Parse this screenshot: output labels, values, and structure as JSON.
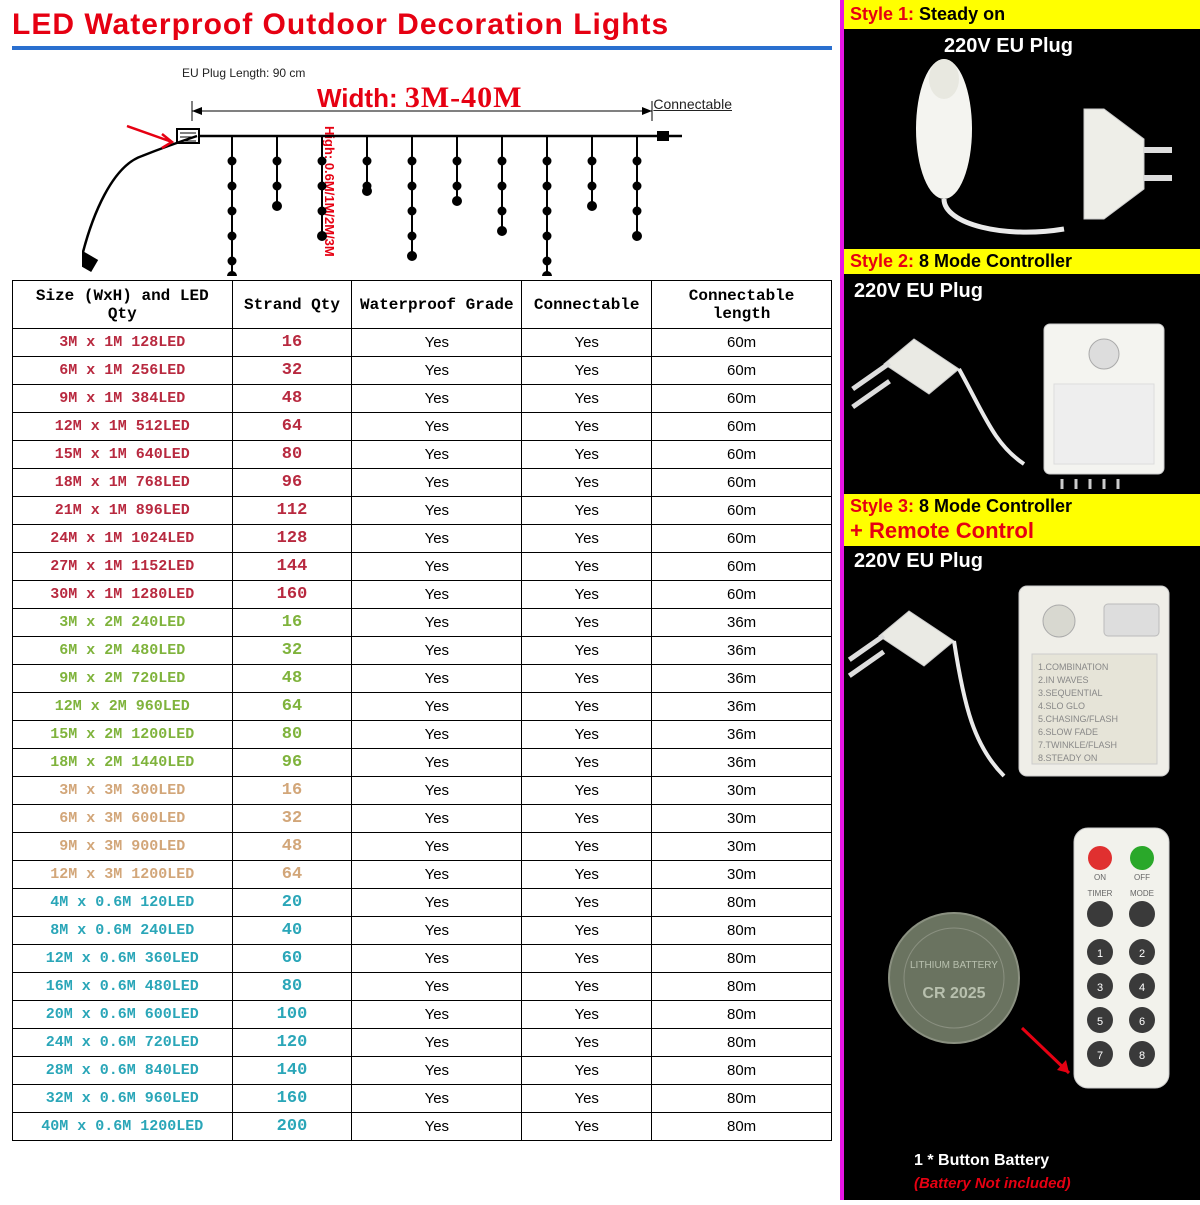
{
  "title": "LED Waterproof Outdoor Decoration Lights",
  "diagram": {
    "width_label": "Width:",
    "width_range": "3M-40M",
    "plug_label": "EU Plug Length: 90 cm",
    "connectable_label": "Connectable",
    "high_label": "High: 0.6M/1M/2M/3M"
  },
  "table": {
    "columns": [
      "Size (WxH) and LED Qty",
      "Strand Qty",
      "Waterproof Grade",
      "Connectable",
      "Connectable length"
    ],
    "row_groups": [
      {
        "color": "#b8293f",
        "rows": [
          {
            "size": "3M x 1M 128LED",
            "strand": "16",
            "wp": "Yes",
            "conn": "Yes",
            "len": "60m"
          },
          {
            "size": "6M x 1M 256LED",
            "strand": "32",
            "wp": "Yes",
            "conn": "Yes",
            "len": "60m"
          },
          {
            "size": "9M x 1M 384LED",
            "strand": "48",
            "wp": "Yes",
            "conn": "Yes",
            "len": "60m"
          },
          {
            "size": "12M x 1M 512LED",
            "strand": "64",
            "wp": "Yes",
            "conn": "Yes",
            "len": "60m"
          },
          {
            "size": "15M x 1M 640LED",
            "strand": "80",
            "wp": "Yes",
            "conn": "Yes",
            "len": "60m"
          },
          {
            "size": "18M x 1M 768LED",
            "strand": "96",
            "wp": "Yes",
            "conn": "Yes",
            "len": "60m"
          },
          {
            "size": "21M x 1M 896LED",
            "strand": "112",
            "wp": "Yes",
            "conn": "Yes",
            "len": "60m"
          },
          {
            "size": "24M x 1M 1024LED",
            "strand": "128",
            "wp": "Yes",
            "conn": "Yes",
            "len": "60m"
          },
          {
            "size": "27M x 1M 1152LED",
            "strand": "144",
            "wp": "Yes",
            "conn": "Yes",
            "len": "60m"
          },
          {
            "size": "30M x 1M 1280LED",
            "strand": "160",
            "wp": "Yes",
            "conn": "Yes",
            "len": "60m"
          }
        ]
      },
      {
        "color": "#7fb33c",
        "rows": [
          {
            "size": "3M x 2M 240LED",
            "strand": "16",
            "wp": "Yes",
            "conn": "Yes",
            "len": "36m"
          },
          {
            "size": "6M x 2M 480LED",
            "strand": "32",
            "wp": "Yes",
            "conn": "Yes",
            "len": "36m"
          },
          {
            "size": "9M x 2M 720LED",
            "strand": "48",
            "wp": "Yes",
            "conn": "Yes",
            "len": "36m"
          },
          {
            "size": "12M x 2M 960LED",
            "strand": "64",
            "wp": "Yes",
            "conn": "Yes",
            "len": "36m"
          },
          {
            "size": "15M x 2M 1200LED",
            "strand": "80",
            "wp": "Yes",
            "conn": "Yes",
            "len": "36m"
          },
          {
            "size": "18M x 2M 1440LED",
            "strand": "96",
            "wp": "Yes",
            "conn": "Yes",
            "len": "36m"
          }
        ]
      },
      {
        "color": "#d2a679",
        "rows": [
          {
            "size": "3M x 3M 300LED",
            "strand": "16",
            "wp": "Yes",
            "conn": "Yes",
            "len": "30m"
          },
          {
            "size": "6M x 3M 600LED",
            "strand": "32",
            "wp": "Yes",
            "conn": "Yes",
            "len": "30m"
          },
          {
            "size": "9M x 3M 900LED",
            "strand": "48",
            "wp": "Yes",
            "conn": "Yes",
            "len": "30m"
          },
          {
            "size": "12M x 3M 1200LED",
            "strand": "64",
            "wp": "Yes",
            "conn": "Yes",
            "len": "30m"
          }
        ]
      },
      {
        "color": "#2aa6b8",
        "rows": [
          {
            "size": "4M x 0.6M 120LED",
            "strand": "20",
            "wp": "Yes",
            "conn": "Yes",
            "len": "80m"
          },
          {
            "size": "8M x 0.6M 240LED",
            "strand": "40",
            "wp": "Yes",
            "conn": "Yes",
            "len": "80m"
          },
          {
            "size": "12M x 0.6M 360LED",
            "strand": "60",
            "wp": "Yes",
            "conn": "Yes",
            "len": "80m"
          },
          {
            "size": "16M x 0.6M 480LED",
            "strand": "80",
            "wp": "Yes",
            "conn": "Yes",
            "len": "80m"
          },
          {
            "size": "20M x 0.6M 600LED",
            "strand": "100",
            "wp": "Yes",
            "conn": "Yes",
            "len": "80m"
          },
          {
            "size": "24M x 0.6M 720LED",
            "strand": "120",
            "wp": "Yes",
            "conn": "Yes",
            "len": "80m"
          },
          {
            "size": "28M x 0.6M 840LED",
            "strand": "140",
            "wp": "Yes",
            "conn": "Yes",
            "len": "80m"
          },
          {
            "size": "32M x 0.6M 960LED",
            "strand": "160",
            "wp": "Yes",
            "conn": "Yes",
            "len": "80m"
          },
          {
            "size": "40M x 0.6M 1200LED",
            "strand": "200",
            "wp": "Yes",
            "conn": "Yes",
            "len": "80m"
          }
        ]
      }
    ]
  },
  "right": {
    "style1": {
      "label": "Style 1:",
      "desc": "Steady on",
      "plug": "220V EU Plug"
    },
    "style2": {
      "label": "Style 2:",
      "desc": "8 Mode Controller",
      "plug": "220V EU Plug"
    },
    "style3": {
      "label": "Style 3:",
      "desc": "8 Mode Controller",
      "plus": "+  Remote Control",
      "plug": "220V EU Plug"
    },
    "battery_label": "1 * Button Battery",
    "battery_not": "(Battery Not included)"
  },
  "colors": {
    "title_red": "#e60012",
    "line_blue": "#2a6fcf",
    "magenta": "#e815e4",
    "yellow": "#ffff00",
    "black_cell": "#000"
  }
}
